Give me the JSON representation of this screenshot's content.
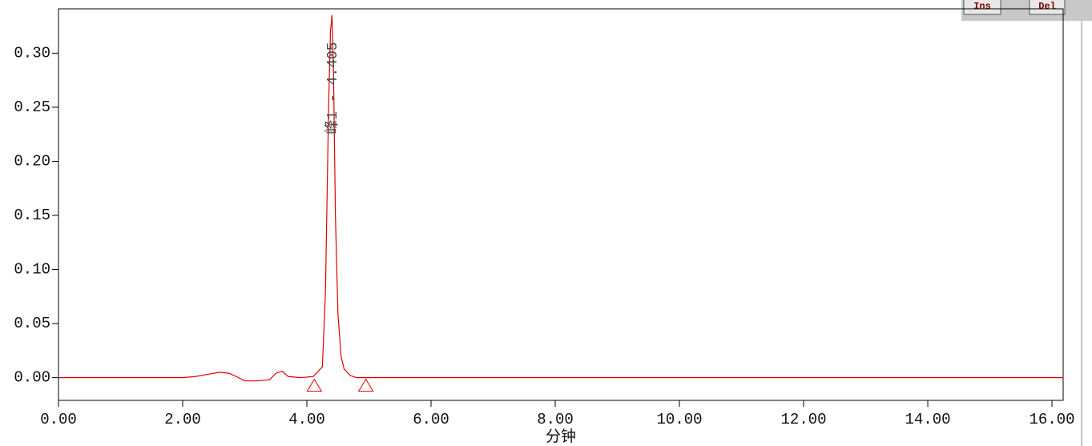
{
  "chart_data": {
    "type": "line",
    "x_label": "分钟",
    "annotation": "峰1 - 4.405",
    "toolbar": [
      "Ins",
      "Del"
    ],
    "x": [
      0,
      0.5,
      1,
      1.5,
      2,
      2.2,
      2.4,
      2.6,
      2.75,
      2.9,
      3.0,
      3.2,
      3.4,
      3.5,
      3.6,
      3.7,
      3.9,
      4.1,
      4.25,
      4.3,
      4.35,
      4.38,
      4.405,
      4.43,
      4.46,
      4.5,
      4.55,
      4.6,
      4.7,
      4.8,
      5,
      6,
      8,
      10,
      12,
      14,
      16,
      16.18
    ],
    "series": [
      {
        "color": "#e00000",
        "values": [
          0,
          0,
          0,
          0,
          0,
          0.001,
          0.003,
          0.005,
          0.004,
          0,
          -0.003,
          -0.003,
          -0.002,
          0.004,
          0.006,
          0.001,
          0,
          0.001,
          0.01,
          0.08,
          0.25,
          0.32,
          0.335,
          0.28,
          0.15,
          0.06,
          0.02,
          0.008,
          0.002,
          0,
          0,
          0,
          0,
          0,
          0,
          0,
          0,
          0
        ]
      }
    ],
    "baseline_markers": [
      4.12,
      4.95
    ],
    "xlim": [
      0,
      16.18
    ],
    "ylim": [
      -0.021,
      0.341
    ],
    "xticks": [
      {
        "value": 0,
        "label": "0.00"
      },
      {
        "value": 2,
        "label": "2.00"
      },
      {
        "value": 4,
        "label": "4.00"
      },
      {
        "value": 6,
        "label": "6.00"
      },
      {
        "value": 8,
        "label": "8.00"
      },
      {
        "value": 10,
        "label": "10.00"
      },
      {
        "value": 12,
        "label": "12.00"
      },
      {
        "value": 14,
        "label": "14.00"
      },
      {
        "value": 16,
        "label": "16.00"
      }
    ],
    "yticks": [
      {
        "value": 0,
        "label": "0.00"
      },
      {
        "value": 0.05,
        "label": "0.05"
      },
      {
        "value": 0.1,
        "label": "0.10"
      },
      {
        "value": 0.15,
        "label": "0.15"
      },
      {
        "value": 0.2,
        "label": "0.20"
      },
      {
        "value": 0.25,
        "label": "0.25"
      },
      {
        "value": 0.3,
        "label": "0.30"
      }
    ],
    "grid": false
  }
}
